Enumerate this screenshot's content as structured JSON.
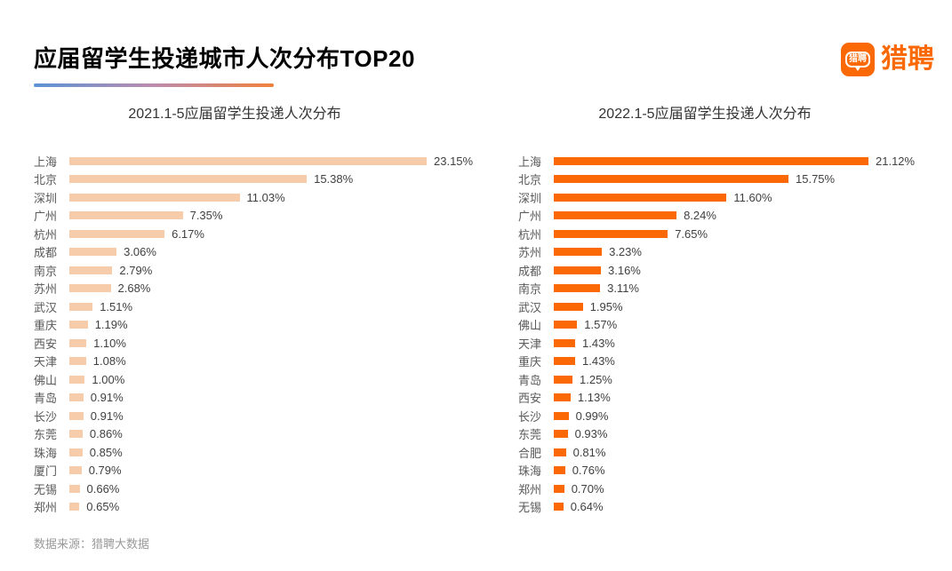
{
  "page": {
    "title": "应届留学生投递城市人次分布TOP20",
    "footer": "数据来源：猎聘大数据",
    "logo": {
      "text": "猎聘",
      "icon_text": "猎聘"
    }
  },
  "colors": {
    "accent_orange": "#fb6906",
    "left_bar": "#f6ccab",
    "right_bar": "#fb6906",
    "underline_gradient": [
      "#5b93d5",
      "#bc8cae",
      "#f0813c"
    ]
  },
  "chart_data": [
    {
      "type": "bar",
      "orientation": "horizontal",
      "title": "2021.1-5应届留学生投递人次分布",
      "categories": [
        "上海",
        "北京",
        "深圳",
        "广州",
        "杭州",
        "成都",
        "南京",
        "苏州",
        "武汉",
        "重庆",
        "西安",
        "天津",
        "佛山",
        "青岛",
        "长沙",
        "东莞",
        "珠海",
        "厦门",
        "无锡",
        "郑州"
      ],
      "values": [
        23.15,
        15.38,
        11.03,
        7.35,
        6.17,
        3.06,
        2.79,
        2.68,
        1.51,
        1.19,
        1.1,
        1.08,
        1.0,
        0.91,
        0.91,
        0.86,
        0.85,
        0.79,
        0.66,
        0.65
      ],
      "labels": [
        "23.15%",
        "15.38%",
        "11.03%",
        "7.35%",
        "6.17%",
        "3.06%",
        "2.79%",
        "2.68%",
        "1.51%",
        "1.19%",
        "1.10%",
        "1.08%",
        "1.00%",
        "0.91%",
        "0.91%",
        "0.86%",
        "0.85%",
        "0.79%",
        "0.66%",
        "0.65%"
      ],
      "bar_color": "#f6ccab",
      "xlim": [
        0,
        23.15
      ],
      "value_suffix": "%",
      "grid": false,
      "legend": false
    },
    {
      "type": "bar",
      "orientation": "horizontal",
      "title": "2022.1-5应届留学生投递人次分布",
      "categories": [
        "上海",
        "北京",
        "深圳",
        "广州",
        "杭州",
        "苏州",
        "成都",
        "南京",
        "武汉",
        "佛山",
        "天津",
        "重庆",
        "青岛",
        "西安",
        "长沙",
        "东莞",
        "合肥",
        "珠海",
        "郑州",
        "无锡"
      ],
      "values": [
        21.12,
        15.75,
        11.6,
        8.24,
        7.65,
        3.23,
        3.16,
        3.11,
        1.95,
        1.57,
        1.43,
        1.43,
        1.25,
        1.13,
        0.99,
        0.93,
        0.81,
        0.76,
        0.7,
        0.64
      ],
      "labels": [
        "21.12%",
        "15.75%",
        "11.60%",
        "8.24%",
        "7.65%",
        "3.23%",
        "3.16%",
        "3.11%",
        "1.95%",
        "1.57%",
        "1.43%",
        "1.43%",
        "1.25%",
        "1.13%",
        "0.99%",
        "0.93%",
        "0.81%",
        "0.76%",
        "0.70%",
        "0.64%"
      ],
      "bar_color": "#fb6906",
      "xlim": [
        0,
        21.12
      ],
      "value_suffix": "%",
      "grid": false,
      "legend": false
    }
  ]
}
